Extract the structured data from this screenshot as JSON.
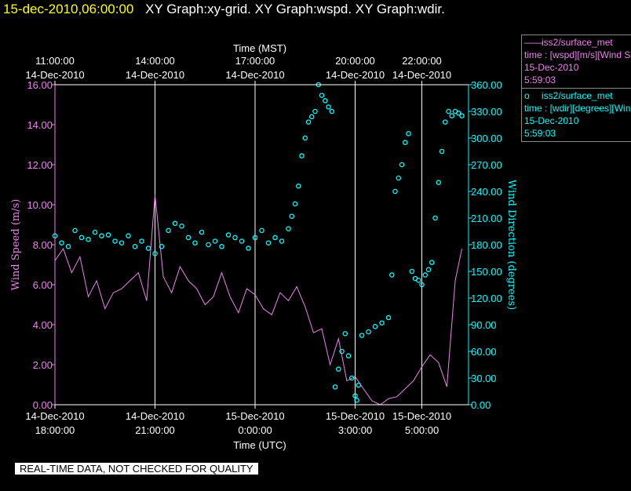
{
  "header": {
    "timestamp": "15-dec-2010,06:00:00",
    "graphs": "XY Graph:xy-grid.  XY Graph:wspd.  XY Graph:wdir."
  },
  "legend": {
    "wspd": {
      "marker": "——",
      "name": "iss2/surface_met",
      "var": "time : [wspd][m/s][Wind Speed]",
      "date": "15-Dec-2010",
      "time": "5:59:03",
      "color": "#ee82ee"
    },
    "wdir": {
      "marker": "o",
      "name": "iss2/surface_met",
      "var": "time : [wdir][degrees][Wind Direction]",
      "date": "15-Dec-2010",
      "time": "5:59:03",
      "color": "#00ffff"
    }
  },
  "disclaimer": "REAL-TIME DATA, NOT CHECKED FOR QUALITY",
  "chart_data": {
    "type": "line",
    "x_unit": "hours since 14-Dec-2010 18:00 UTC",
    "xlim": [
      0,
      12.4
    ],
    "top_axis": {
      "title": "Time (MST)",
      "ticks": [
        {
          "x": 0.0,
          "line1": "11:00:00",
          "line2": "14-Dec-2010"
        },
        {
          "x": 3.0,
          "line1": "14:00:00",
          "line2": "14-Dec-2010"
        },
        {
          "x": 6.0,
          "line1": "17:00:00",
          "line2": "14-Dec-2010"
        },
        {
          "x": 9.0,
          "line1": "20:00:00",
          "line2": "14-Dec-2010"
        },
        {
          "x": 11.0,
          "line1": "22:00:00",
          "line2": "14-Dec-2010"
        }
      ]
    },
    "bottom_axis": {
      "title": "Time (UTC)",
      "ticks": [
        {
          "x": 0.0,
          "line1": "14-Dec-2010",
          "line2": "18:00:00"
        },
        {
          "x": 3.0,
          "line1": "14-Dec-2010",
          "line2": "21:00:00"
        },
        {
          "x": 6.0,
          "line1": "15-Dec-2010",
          "line2": "0:00:00"
        },
        {
          "x": 9.0,
          "line1": "15-Dec-2010",
          "line2": "3:00:00"
        },
        {
          "x": 11.0,
          "line1": "15-Dec-2010",
          "line2": "5:00:00"
        }
      ]
    },
    "grid_x": [
      3.0,
      6.0,
      9.0,
      11.0
    ],
    "left_axis": {
      "label": "Wind Speed (m/s)",
      "ylim": [
        0,
        16
      ],
      "ticks": [
        "0.00",
        "2.00",
        "4.00",
        "6.00",
        "8.00",
        "10.00",
        "12.00",
        "14.00",
        "16.00"
      ],
      "tick_values": [
        0,
        2,
        4,
        6,
        8,
        10,
        12,
        14,
        16
      ]
    },
    "right_axis": {
      "label": "Wind Direction (degrees)",
      "ylim": [
        0,
        360
      ],
      "ticks": [
        "0.00",
        "30.00",
        "60.00",
        "90.00",
        "120.00",
        "150.00",
        "180.00",
        "210.00",
        "240.00",
        "270.00",
        "300.00",
        "330.00",
        "360.00"
      ],
      "tick_values": [
        0,
        30,
        60,
        90,
        120,
        150,
        180,
        210,
        240,
        270,
        300,
        330,
        360
      ]
    },
    "series": [
      {
        "name": "iss2/surface_met",
        "variable": "wspd",
        "axis": "left",
        "style": "line",
        "color": "#ee82ee",
        "x": [
          0,
          0.25,
          0.5,
          0.75,
          1,
          1.25,
          1.5,
          1.75,
          2,
          2.25,
          2.5,
          2.75,
          3,
          3.25,
          3.5,
          3.75,
          4,
          4.25,
          4.5,
          4.75,
          5,
          5.25,
          5.5,
          5.75,
          6,
          6.25,
          6.5,
          6.75,
          7,
          7.25,
          7.5,
          7.75,
          8,
          8.25,
          8.5,
          8.75,
          9,
          9.25,
          9.5,
          9.75,
          10,
          10.25,
          10.5,
          10.75,
          11,
          11.25,
          11.5,
          11.75,
          12,
          12.2
        ],
        "values": [
          7.2,
          7.8,
          6.6,
          7.4,
          5.4,
          6.2,
          4.8,
          5.6,
          5.8,
          6.2,
          6.6,
          5.2,
          10.5,
          6.4,
          5.6,
          6.9,
          6.2,
          5.8,
          5.0,
          5.4,
          6.6,
          5.4,
          4.6,
          5.8,
          5.5,
          4.8,
          4.5,
          5.6,
          5.2,
          5.9,
          4.9,
          3.6,
          3.8,
          2.0,
          3.3,
          1.2,
          1.4,
          0.8,
          0.2,
          0.0,
          0.3,
          0.4,
          0.8,
          1.2,
          1.9,
          2.5,
          2.1,
          0.9,
          6.2,
          7.8
        ]
      },
      {
        "name": "iss2/surface_met",
        "variable": "wdir",
        "axis": "right",
        "style": "markers",
        "color": "#00ffff",
        "x": [
          0,
          0.2,
          0.4,
          0.6,
          0.8,
          1,
          1.2,
          1.4,
          1.6,
          1.8,
          2,
          2.2,
          2.4,
          2.6,
          2.8,
          3,
          3.2,
          3.4,
          3.6,
          3.8,
          4,
          4.2,
          4.4,
          4.6,
          4.8,
          5,
          5.2,
          5.4,
          5.6,
          5.8,
          6,
          6.2,
          6.4,
          6.6,
          6.8,
          7,
          7.1,
          7.2,
          7.3,
          7.4,
          7.5,
          7.6,
          7.7,
          7.8,
          7.9,
          8.0,
          8.1,
          8.2,
          8.3,
          8.4,
          8.5,
          8.6,
          8.7,
          8.8,
          8.9,
          9.0,
          9.05,
          9.1,
          9.2,
          9.4,
          9.6,
          9.8,
          10.0,
          10.1,
          10.2,
          10.3,
          10.4,
          10.5,
          10.6,
          10.7,
          10.8,
          10.9,
          11.0,
          11.1,
          11.2,
          11.3,
          11.4,
          11.5,
          11.6,
          11.7,
          11.8,
          11.9,
          12.0,
          12.1,
          12.2
        ],
        "values": [
          190,
          182,
          178,
          196,
          188,
          186,
          194,
          190,
          191,
          184,
          182,
          190,
          178,
          184,
          176,
          170,
          178,
          196,
          204,
          201,
          188,
          182,
          194,
          180,
          184,
          178,
          191,
          188,
          184,
          176,
          188,
          196,
          182,
          188,
          184,
          198,
          212,
          226,
          246,
          280,
          300,
          318,
          324,
          330,
          360,
          348,
          342,
          335,
          330,
          20,
          40,
          60,
          80,
          55,
          30,
          10,
          5,
          22,
          78,
          82,
          88,
          92,
          98,
          146,
          240,
          255,
          270,
          295,
          305,
          150,
          142,
          140,
          135,
          146,
          152,
          160,
          210,
          250,
          285,
          318,
          330,
          325,
          330,
          328,
          325
        ]
      }
    ]
  }
}
